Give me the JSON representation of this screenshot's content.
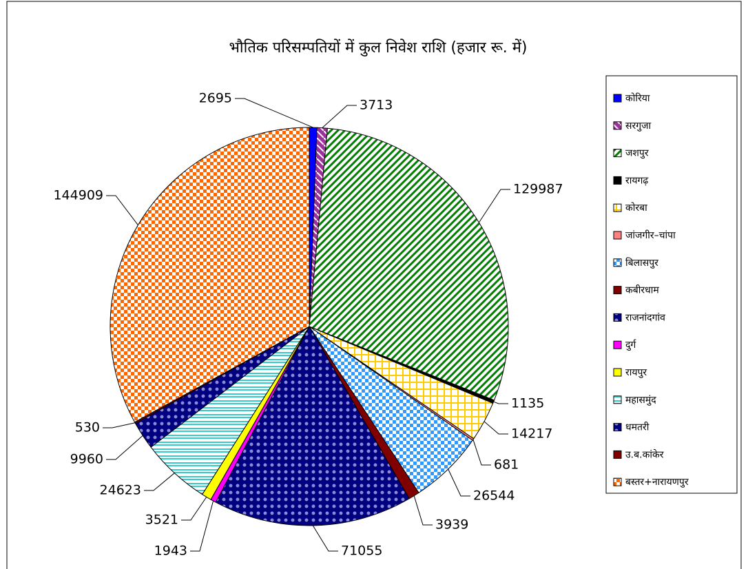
{
  "chart_data": {
    "type": "pie",
    "title": "भौतिक परिसम्पतियों में कुल निवेश राशि (हजार रू. में)",
    "categories": [
      "कोरिया",
      "सरगुजा",
      "जशपुर",
      "रायगढ़",
      "कोरबा",
      "जांजगीर–चांपा",
      "बिलासपुर",
      "कबीरधाम",
      "राजनांदगांव",
      "दुर्ग",
      "रायपुर",
      "महासमुंद",
      "धमतरी",
      "उ.ब.कांकेर",
      "बस्तर+नारायणपुर"
    ],
    "values": [
      2695,
      3713,
      129987,
      1135,
      14217,
      681,
      26544,
      3939,
      71055,
      1943,
      3521,
      24623,
      9960,
      530,
      144909
    ],
    "colors": [
      "#0000ff",
      "#993399",
      "#008000",
      "#000000",
      "#ffcc00",
      "#ff8080",
      "#3399ff",
      "#800000",
      "#000080",
      "#ff00ff",
      "#ffff00",
      "#33cccc",
      "#000080",
      "#800000",
      "#ff6600"
    ],
    "legend": "right"
  }
}
